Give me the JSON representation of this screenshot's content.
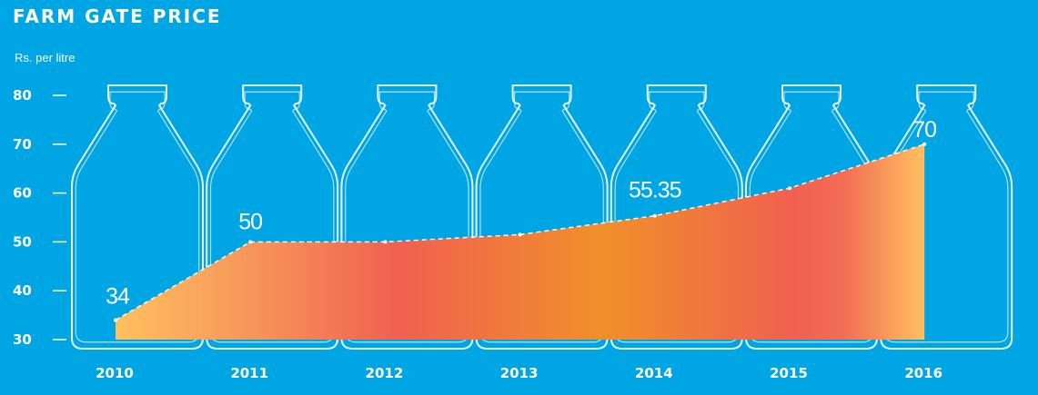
{
  "title": "FARM GATE PRICE",
  "unit": "Rs. per litre",
  "colors": {
    "background": "#00a5e3",
    "fill_low": "#ffc060",
    "fill_mid": "#f06050",
    "fill_orange": "#f0902a",
    "outline": "#ffffff"
  },
  "chart_data": {
    "type": "area",
    "title": "FARM GATE PRICE",
    "ylabel": "Rs. per litre",
    "categories": [
      "2010",
      "2011",
      "2012",
      "2013",
      "2014",
      "2015",
      "2016"
    ],
    "values": [
      34,
      50,
      50,
      51.5,
      55.35,
      61,
      70
    ],
    "data_labels": [
      {
        "index": 0,
        "text": "34"
      },
      {
        "index": 1,
        "text": "50"
      },
      {
        "index": 4,
        "text": "55.35"
      },
      {
        "index": 6,
        "text": "70"
      }
    ],
    "yticks": [
      30,
      40,
      50,
      60,
      70,
      80
    ],
    "ylim": [
      30,
      80
    ],
    "grid": false,
    "legend": "none"
  }
}
